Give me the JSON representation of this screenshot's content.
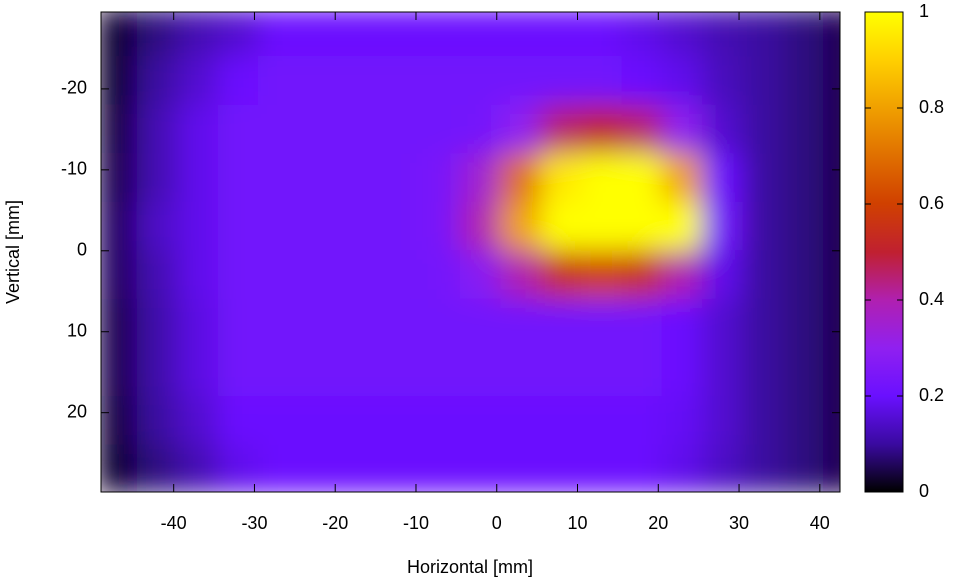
{
  "chart_data": {
    "type": "heatmap",
    "xlabel": "Horizontal [mm]",
    "ylabel": "Vertical [mm]",
    "xlim": [
      -49,
      42.5
    ],
    "ylim": [
      -29.5,
      29.8
    ],
    "y_inverted": true,
    "xticks": [
      -40,
      -30,
      -20,
      -10,
      0,
      10,
      20,
      30,
      40
    ],
    "yticks": [
      -20,
      -10,
      0,
      10,
      20
    ],
    "zlim": [
      0,
      1
    ],
    "zticks": [
      0,
      0.2,
      0.4,
      0.6,
      0.8,
      1
    ],
    "colorscale": [
      "#000000",
      "#3a0aa0",
      "#6a10ff",
      "#9020f0",
      "#b020b0",
      "#c02030",
      "#d04000",
      "#e07000",
      "#f0a000",
      "#ffd000",
      "#ffff00"
    ],
    "x": [
      -47,
      -42,
      -37,
      -32,
      -27,
      -22,
      -17,
      -12,
      -7,
      -2,
      3,
      8,
      13,
      18,
      23,
      28,
      33,
      38,
      43
    ],
    "y": [
      -27,
      -21,
      -15,
      -9,
      -3,
      3,
      9,
      15,
      21,
      27
    ],
    "z": [
      [
        0.03,
        0.08,
        0.12,
        0.15,
        0.2,
        0.2,
        0.2,
        0.2,
        0.2,
        0.2,
        0.2,
        0.2,
        0.2,
        0.18,
        0.15,
        0.12,
        0.1,
        0.08,
        0.05
      ],
      [
        0.03,
        0.1,
        0.15,
        0.2,
        0.22,
        0.22,
        0.22,
        0.22,
        0.22,
        0.22,
        0.22,
        0.22,
        0.22,
        0.2,
        0.18,
        0.13,
        0.1,
        0.08,
        0.05
      ],
      [
        0.04,
        0.12,
        0.18,
        0.22,
        0.22,
        0.22,
        0.22,
        0.22,
        0.22,
        0.23,
        0.3,
        0.45,
        0.5,
        0.45,
        0.3,
        0.15,
        0.1,
        0.08,
        0.05
      ],
      [
        0.05,
        0.12,
        0.18,
        0.22,
        0.22,
        0.22,
        0.22,
        0.22,
        0.24,
        0.35,
        0.7,
        0.95,
        1,
        1,
        0.8,
        0.2,
        0.1,
        0.08,
        0.05
      ],
      [
        0.06,
        0.14,
        0.18,
        0.22,
        0.22,
        0.22,
        0.22,
        0.22,
        0.24,
        0.4,
        0.8,
        1,
        1,
        1,
        1,
        0.22,
        0.1,
        0.08,
        0.05
      ],
      [
        0.06,
        0.12,
        0.18,
        0.22,
        0.22,
        0.22,
        0.22,
        0.22,
        0.23,
        0.28,
        0.4,
        0.55,
        0.6,
        0.55,
        0.4,
        0.18,
        0.1,
        0.08,
        0.05
      ],
      [
        0.05,
        0.11,
        0.17,
        0.22,
        0.22,
        0.22,
        0.22,
        0.22,
        0.22,
        0.22,
        0.22,
        0.22,
        0.22,
        0.22,
        0.2,
        0.15,
        0.1,
        0.08,
        0.05
      ],
      [
        0.05,
        0.11,
        0.17,
        0.22,
        0.22,
        0.22,
        0.22,
        0.22,
        0.22,
        0.22,
        0.22,
        0.22,
        0.22,
        0.22,
        0.2,
        0.15,
        0.1,
        0.08,
        0.05
      ],
      [
        0.04,
        0.1,
        0.15,
        0.2,
        0.2,
        0.2,
        0.2,
        0.2,
        0.2,
        0.2,
        0.2,
        0.2,
        0.2,
        0.2,
        0.19,
        0.15,
        0.1,
        0.08,
        0.05
      ],
      [
        0.03,
        0.08,
        0.12,
        0.18,
        0.2,
        0.2,
        0.2,
        0.2,
        0.2,
        0.2,
        0.2,
        0.2,
        0.2,
        0.2,
        0.18,
        0.14,
        0.1,
        0.08,
        0.05
      ]
    ]
  }
}
